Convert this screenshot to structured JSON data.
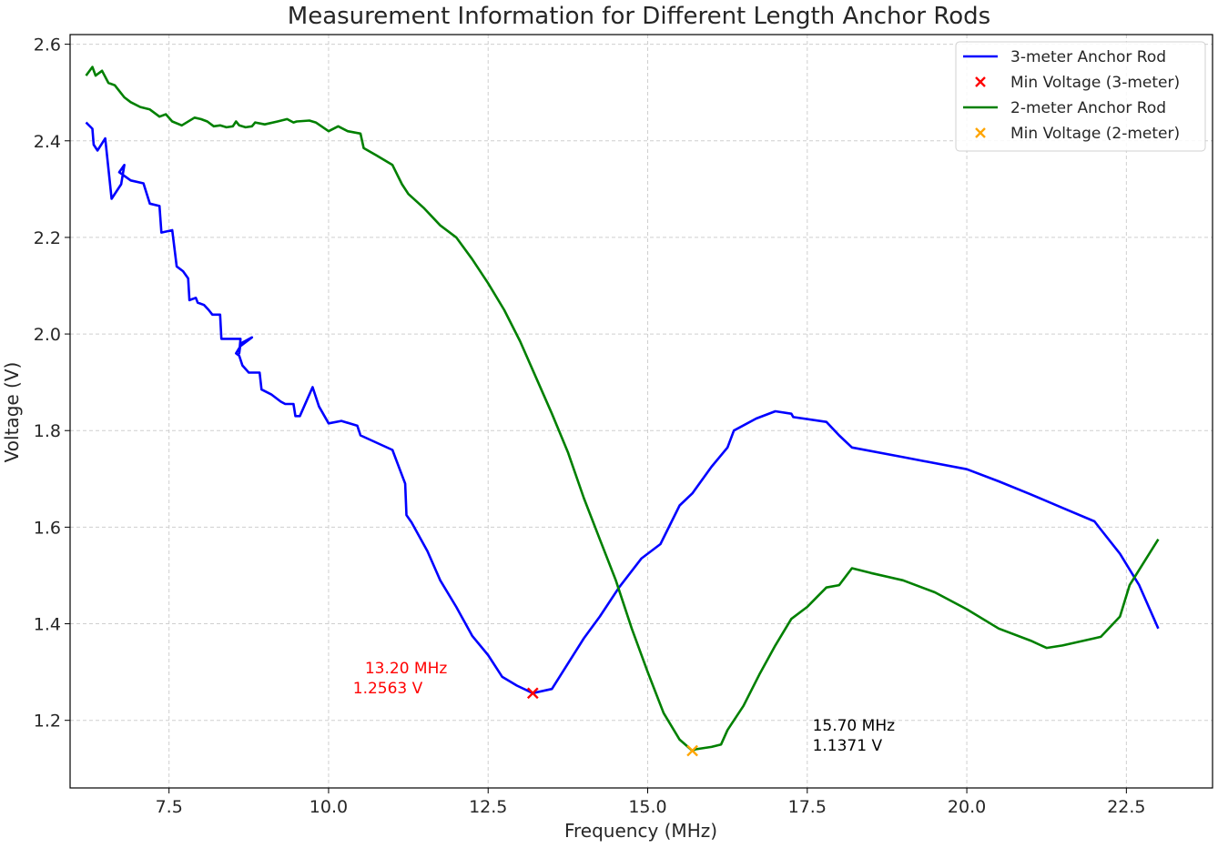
{
  "chart_data": {
    "type": "line",
    "title": "Measurement Information for Different Length Anchor Rods",
    "xlabel": "Frequency (MHz)",
    "ylabel": "Voltage (V)",
    "xlim": [
      5.95,
      23.85
    ],
    "ylim": [
      1.06,
      2.62
    ],
    "xticks": [
      7.5,
      10.0,
      12.5,
      15.0,
      17.5,
      20.0,
      22.5
    ],
    "xtick_labels": [
      "7.5",
      "10.0",
      "12.5",
      "15.0",
      "17.5",
      "20.0",
      "22.5"
    ],
    "yticks": [
      1.2,
      1.4,
      1.6,
      1.8,
      2.0,
      2.2,
      2.4,
      2.6
    ],
    "ytick_labels": [
      "1.2",
      "1.4",
      "1.6",
      "1.8",
      "2.0",
      "2.2",
      "2.4",
      "2.6"
    ],
    "grid": true,
    "legend_position": "top-right",
    "series": [
      {
        "name": "3-meter Anchor Rod",
        "color": "#0000ff",
        "x": [
          6.2,
          6.3,
          6.32,
          6.38,
          6.5,
          6.6,
          6.75,
          6.8,
          6.72,
          6.9,
          7.1,
          7.2,
          7.35,
          7.38,
          7.55,
          7.62,
          7.72,
          7.8,
          7.82,
          7.92,
          7.95,
          8.05,
          8.12,
          8.18,
          8.22,
          8.3,
          8.32,
          8.38,
          8.4,
          8.55,
          8.62,
          8.6,
          8.62,
          8.8,
          8.62,
          8.55,
          8.6,
          8.65,
          8.75,
          8.92,
          8.95,
          9.1,
          9.25,
          9.32,
          9.45,
          9.48,
          9.55,
          9.75,
          9.85,
          10.0,
          10.2,
          10.45,
          10.5,
          11.0,
          11.2,
          11.22,
          11.3,
          11.55,
          11.75,
          12.0,
          12.25,
          12.5,
          12.72,
          12.95,
          13.2,
          13.5,
          14.0,
          14.25,
          14.55,
          14.9,
          15.2,
          15.5,
          15.7,
          16.0,
          16.25,
          16.35,
          16.7,
          17.0,
          17.25,
          17.28,
          17.8,
          18.0,
          18.2,
          19.0,
          20.0,
          20.5,
          21.0,
          21.5,
          22.0,
          22.1,
          22.4,
          22.7,
          23.0
        ],
        "y": [
          2.438,
          2.425,
          2.392,
          2.38,
          2.405,
          2.28,
          2.31,
          2.35,
          2.335,
          2.318,
          2.312,
          2.27,
          2.265,
          2.21,
          2.215,
          2.14,
          2.13,
          2.115,
          2.07,
          2.075,
          2.065,
          2.06,
          2.05,
          2.04,
          2.04,
          2.04,
          1.99,
          1.99,
          1.99,
          1.99,
          1.99,
          1.96,
          1.98,
          1.993,
          1.975,
          1.96,
          1.955,
          1.935,
          1.92,
          1.92,
          1.885,
          1.875,
          1.86,
          1.855,
          1.855,
          1.83,
          1.83,
          1.89,
          1.85,
          1.815,
          1.82,
          1.81,
          1.79,
          1.76,
          1.69,
          1.625,
          1.61,
          1.55,
          1.49,
          1.435,
          1.375,
          1.335,
          1.29,
          1.272,
          1.2563,
          1.265,
          1.37,
          1.415,
          1.475,
          1.535,
          1.565,
          1.645,
          1.67,
          1.725,
          1.765,
          1.8,
          1.825,
          1.84,
          1.835,
          1.828,
          1.818,
          1.79,
          1.765,
          1.745,
          1.72,
          1.695,
          1.668,
          1.64,
          1.612,
          1.595,
          1.545,
          1.48,
          1.39
        ]
      },
      {
        "name": "Min Voltage (3-meter)",
        "type": "scatter",
        "marker": "x",
        "color": "#ff0000",
        "x": [
          13.2
        ],
        "y": [
          1.2563
        ]
      },
      {
        "name": "2-meter Anchor Rod",
        "color": "#008000",
        "x": [
          6.2,
          6.3,
          6.35,
          6.45,
          6.55,
          6.65,
          6.8,
          6.9,
          7.05,
          7.2,
          7.35,
          7.45,
          7.55,
          7.7,
          7.9,
          8.0,
          8.1,
          8.2,
          8.3,
          8.4,
          8.5,
          8.55,
          8.6,
          8.7,
          8.8,
          8.85,
          9.0,
          9.2,
          9.35,
          9.45,
          9.5,
          9.7,
          9.8,
          10.0,
          10.15,
          10.3,
          10.5,
          10.55,
          10.75,
          11.0,
          11.15,
          11.25,
          11.5,
          11.75,
          12.0,
          12.25,
          12.5,
          12.75,
          13.0,
          13.25,
          13.5,
          13.75,
          14.0,
          14.25,
          14.5,
          14.75,
          15.0,
          15.25,
          15.5,
          15.7,
          15.75,
          16.0,
          16.15,
          16.25,
          16.5,
          16.75,
          17.0,
          17.25,
          17.5,
          17.65,
          17.8,
          18.0,
          18.2,
          18.5,
          19.0,
          19.5,
          20.0,
          20.5,
          21.0,
          21.25,
          21.5,
          22.0,
          22.1,
          22.4,
          22.55,
          23.0
        ],
        "y": [
          2.535,
          2.553,
          2.535,
          2.545,
          2.52,
          2.515,
          2.49,
          2.48,
          2.47,
          2.465,
          2.45,
          2.455,
          2.44,
          2.432,
          2.448,
          2.445,
          2.44,
          2.43,
          2.432,
          2.428,
          2.43,
          2.44,
          2.432,
          2.428,
          2.43,
          2.438,
          2.434,
          2.44,
          2.445,
          2.438,
          2.44,
          2.442,
          2.438,
          2.42,
          2.43,
          2.42,
          2.415,
          2.385,
          2.37,
          2.35,
          2.31,
          2.29,
          2.26,
          2.225,
          2.2,
          2.155,
          2.105,
          2.05,
          1.985,
          1.91,
          1.835,
          1.755,
          1.66,
          1.575,
          1.49,
          1.39,
          1.3,
          1.215,
          1.16,
          1.1371,
          1.14,
          1.145,
          1.15,
          1.18,
          1.23,
          1.295,
          1.355,
          1.41,
          1.435,
          1.455,
          1.475,
          1.48,
          1.515,
          1.505,
          1.49,
          1.465,
          1.43,
          1.39,
          1.365,
          1.35,
          1.355,
          1.37,
          1.373,
          1.415,
          1.48,
          1.575
        ]
      },
      {
        "name": "Min Voltage (2-meter)",
        "type": "scatter",
        "marker": "x",
        "color": "#ffa500",
        "x": [
          15.7
        ],
        "y": [
          1.1371
        ]
      }
    ],
    "annotations": [
      {
        "line1": "13.20 MHz",
        "line2": "1.2563 V",
        "color": "#ff0000",
        "x": 13.2,
        "y": 1.2563,
        "align": "right"
      },
      {
        "line1": "15.70 MHz",
        "line2": "1.1371 V",
        "color": "#000000",
        "x": 15.7,
        "y": 1.1371,
        "align": "left"
      }
    ]
  }
}
